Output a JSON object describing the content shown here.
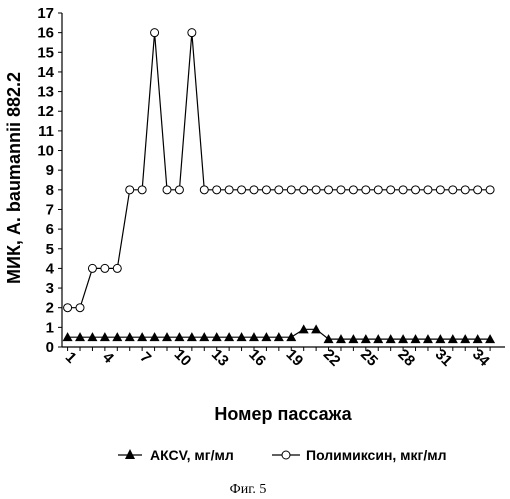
{
  "chart_data": {
    "type": "line",
    "x": [
      1,
      2,
      3,
      4,
      5,
      6,
      7,
      8,
      9,
      10,
      11,
      12,
      13,
      14,
      15,
      16,
      17,
      18,
      19,
      20,
      21,
      22,
      23,
      24,
      25,
      26,
      27,
      28,
      29,
      30,
      31,
      32,
      33,
      34,
      35
    ],
    "x_tick_labels": [
      "1",
      "4",
      "7",
      "10",
      "13",
      "16",
      "19",
      "22",
      "25",
      "28",
      "31",
      "34"
    ],
    "x_tick_values": [
      1,
      4,
      7,
      10,
      13,
      16,
      19,
      22,
      25,
      28,
      31,
      34
    ],
    "y_ticks": [
      0,
      1,
      2,
      3,
      4,
      5,
      6,
      7,
      8,
      9,
      10,
      11,
      12,
      13,
      14,
      15,
      16,
      17
    ],
    "ylim": [
      0,
      17
    ],
    "xlabel": "Номер пассажа",
    "ylabel": "МИК, A. baumannii 882.2",
    "legend_position": "bottom",
    "caption": "Фиг. 5",
    "series": [
      {
        "name": "АКСV, мг/мл",
        "marker": "triangle",
        "color": "#000000",
        "values": [
          0.5,
          0.5,
          0.5,
          0.5,
          0.5,
          0.5,
          0.5,
          0.5,
          0.5,
          0.5,
          0.5,
          0.5,
          0.5,
          0.5,
          0.5,
          0.5,
          0.5,
          0.5,
          0.5,
          0.9,
          0.9,
          0.4,
          0.4,
          0.4,
          0.4,
          0.4,
          0.4,
          0.4,
          0.4,
          0.4,
          0.4,
          0.4,
          0.4,
          0.4,
          0.4
        ]
      },
      {
        "name": "Полимиксин, мкг/мл",
        "marker": "circle",
        "color": "#000000",
        "values": [
          2,
          2,
          4,
          4,
          4,
          8,
          8,
          16,
          8,
          8,
          16,
          8,
          8,
          8,
          8,
          8,
          8,
          8,
          8,
          8,
          8,
          8,
          8,
          8,
          8,
          8,
          8,
          8,
          8,
          8,
          8,
          8,
          8,
          8,
          8
        ]
      }
    ]
  }
}
